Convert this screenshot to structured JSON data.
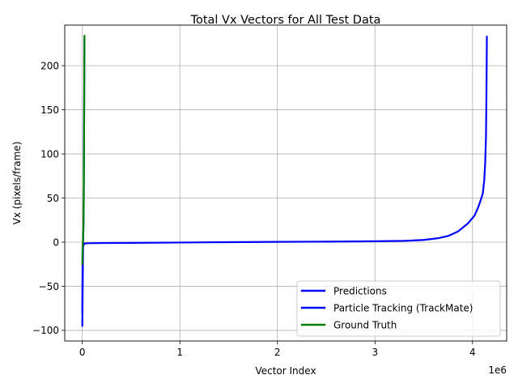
{
  "chart_data": {
    "type": "line",
    "title": "Total Vx Vectors for All Test Data",
    "xlabel": "Vector Index",
    "ylabel": "Vx (pixels/frame)",
    "x_offset_label": "1e6",
    "x_scale": 1000000,
    "xlim": [
      -180000,
      4350000
    ],
    "ylim": [
      -112,
      246
    ],
    "x_ticks": [
      0,
      1000000,
      2000000,
      3000000,
      4000000
    ],
    "x_tick_labels": [
      "0",
      "1",
      "2",
      "3",
      "4"
    ],
    "y_ticks": [
      -100,
      -50,
      0,
      50,
      100,
      150,
      200
    ],
    "y_tick_labels": [
      "−100",
      "−50",
      "0",
      "50",
      "100",
      "150",
      "200"
    ],
    "grid": true,
    "legend_position": "lower right",
    "series": [
      {
        "name": "Predictions",
        "color": "#0000ff",
        "x": [
          0,
          8000,
          20000,
          60000,
          200000,
          500000,
          1000000,
          1500000,
          2000000,
          2500000,
          3000000,
          3300000,
          3500000,
          3650000,
          3750000,
          3850000,
          3950000,
          4020000,
          4060000,
          4085000,
          4105000,
          4120000,
          4130000,
          4138000,
          4142000,
          4145000,
          4147000
        ],
        "y": [
          -95,
          -5,
          -1.5,
          -1.2,
          -1,
          -0.8,
          -0.4,
          0,
          0.3,
          0.6,
          1,
          1.5,
          2.5,
          4.5,
          7,
          12,
          21,
          30,
          40,
          48,
          55,
          70,
          90,
          120,
          160,
          200,
          233
        ]
      },
      {
        "name": "Particle Tracking (TrackMate)",
        "color": "#0000ff",
        "x": [
          0,
          1000,
          2500,
          4000,
          5500,
          7000,
          8500,
          10000,
          12000,
          14000,
          16000,
          18000,
          20000,
          22000
        ],
        "y": [
          -80,
          -50,
          -25,
          -12,
          -4,
          0,
          3,
          8,
          18,
          35,
          70,
          120,
          185,
          232
        ]
      },
      {
        "name": "Ground Truth",
        "color": "#008000",
        "x": [
          0,
          1500,
          3000,
          4500,
          6000,
          7500,
          9000,
          10500,
          12000,
          13500,
          15000,
          16500,
          18000,
          19500,
          21000,
          22500
        ],
        "y": [
          -25,
          -15,
          -8,
          -3,
          0,
          3,
          7,
          12,
          20,
          32,
          50,
          80,
          120,
          165,
          205,
          234
        ]
      }
    ]
  }
}
